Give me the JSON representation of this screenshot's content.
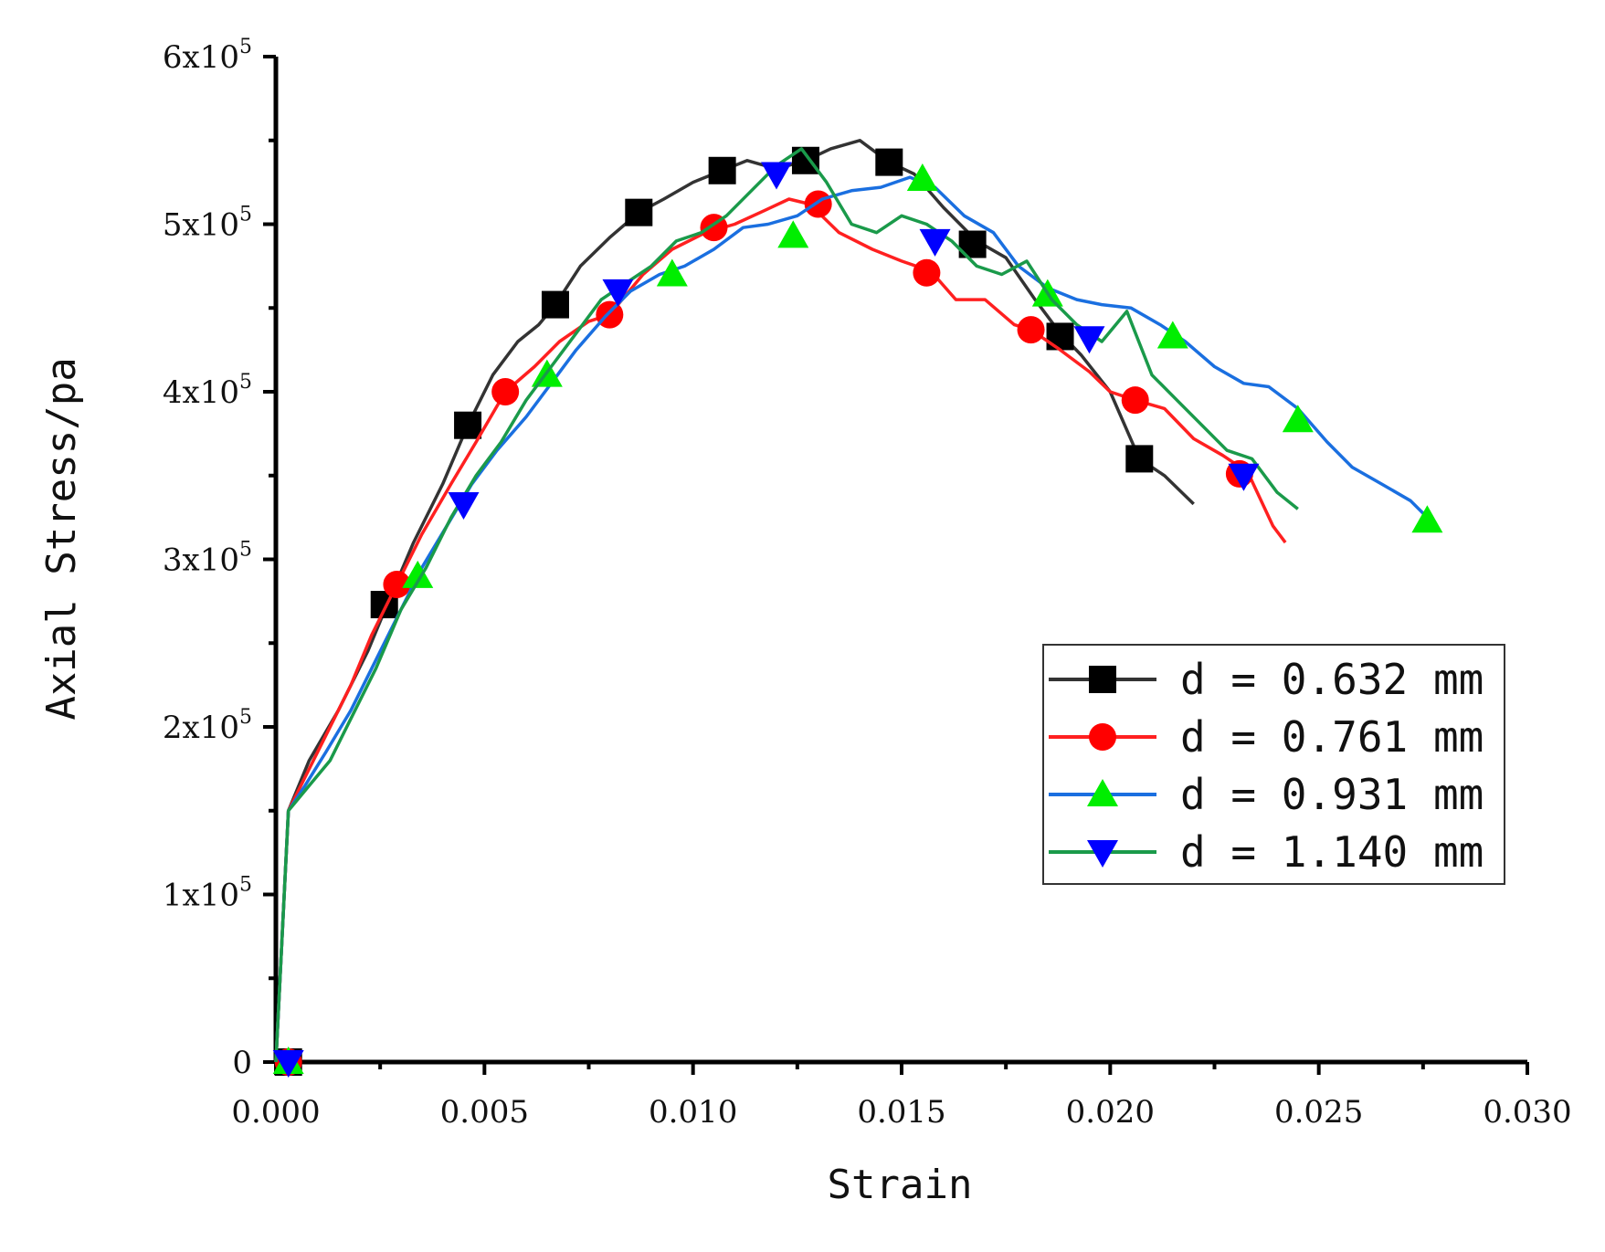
{
  "chart_data": {
    "type": "line",
    "title": "",
    "xlabel": "Strain",
    "ylabel": "Axial Stress/pa",
    "xlim": [
      0,
      0.03
    ],
    "ylim": [
      0,
      600000
    ],
    "x_ticks": [
      {
        "value": 0.0,
        "label": "0.000"
      },
      {
        "value": 0.005,
        "label": "0.005"
      },
      {
        "value": 0.01,
        "label": "0.010"
      },
      {
        "value": 0.015,
        "label": "0.015"
      },
      {
        "value": 0.02,
        "label": "0.020"
      },
      {
        "value": 0.025,
        "label": "0.025"
      },
      {
        "value": 0.03,
        "label": "0.030"
      }
    ],
    "y_ticks": [
      {
        "value": 0,
        "label": "0",
        "mant": "",
        "exp": ""
      },
      {
        "value": 100000,
        "label": "1x10",
        "mant": "1x10",
        "exp": "5"
      },
      {
        "value": 200000,
        "label": "2x10",
        "mant": "2x10",
        "exp": "5"
      },
      {
        "value": 300000,
        "label": "3x10",
        "mant": "3x10",
        "exp": "5"
      },
      {
        "value": 400000,
        "label": "4x10",
        "mant": "4x10",
        "exp": "5"
      },
      {
        "value": 500000,
        "label": "5x10",
        "mant": "5x10",
        "exp": "5"
      },
      {
        "value": 600000,
        "label": "6x10",
        "mant": "6x10",
        "exp": "5"
      }
    ],
    "grid": false,
    "legend_position": "right-middle",
    "series": [
      {
        "name": "d = 0.632 mm",
        "color": "#333333",
        "marker": "square",
        "marker_color": "#000000",
        "x": [
          0,
          0.0003,
          0.0008,
          0.0015,
          0.0022,
          0.0027,
          0.0033,
          0.004,
          0.0046,
          0.0052,
          0.0058,
          0.0063,
          0.0067,
          0.0073,
          0.008,
          0.0087,
          0.0093,
          0.01,
          0.0107,
          0.0113,
          0.012,
          0.0127,
          0.0133,
          0.014,
          0.0147,
          0.0153,
          0.016,
          0.0168,
          0.0175,
          0.0182,
          0.0188,
          0.0193,
          0.02,
          0.0207,
          0.0213,
          0.022
        ],
        "y": [
          0,
          150000,
          180000,
          210000,
          245000,
          275000,
          310000,
          345000,
          380000,
          410000,
          430000,
          440000,
          452000,
          475000,
          492000,
          507000,
          515000,
          525000,
          532000,
          538000,
          533000,
          538000,
          545000,
          550000,
          537000,
          530000,
          510000,
          490000,
          480000,
          455000,
          435000,
          422000,
          400000,
          360000,
          350000,
          333000
        ],
        "marker_x": [
          0.0003,
          0.0026,
          0.0046,
          0.0067,
          0.0087,
          0.0107,
          0.0127,
          0.0147,
          0.0167,
          0.0188,
          0.0207
        ],
        "marker_y": [
          0,
          273000,
          380000,
          452000,
          507000,
          532000,
          538000,
          537000,
          488000,
          433000,
          360000
        ]
      },
      {
        "name": "d = 0.761 mm",
        "color": "#ff2020",
        "marker": "circle",
        "marker_color": "#ff0000",
        "x": [
          0,
          0.0003,
          0.0007,
          0.0012,
          0.0018,
          0.0023,
          0.0029,
          0.0035,
          0.0042,
          0.0048,
          0.0055,
          0.0062,
          0.0068,
          0.0075,
          0.008,
          0.0088,
          0.0095,
          0.0103,
          0.011,
          0.0117,
          0.0123,
          0.0128,
          0.0135,
          0.0143,
          0.015,
          0.0157,
          0.0163,
          0.017,
          0.0177,
          0.0181,
          0.0188,
          0.0195,
          0.02,
          0.0206,
          0.0213,
          0.022,
          0.0227,
          0.0233,
          0.0239,
          0.0242
        ],
        "y": [
          0,
          150000,
          170000,
          195000,
          225000,
          255000,
          285000,
          315000,
          345000,
          370000,
          400000,
          415000,
          430000,
          442000,
          446000,
          470000,
          485000,
          495000,
          500000,
          508000,
          515000,
          512000,
          495000,
          485000,
          478000,
          472000,
          455000,
          455000,
          440000,
          437000,
          425000,
          412000,
          400000,
          395000,
          390000,
          372000,
          362000,
          352000,
          320000,
          310000
        ],
        "marker_x": [
          0.0003,
          0.0029,
          0.0055,
          0.008,
          0.0105,
          0.013,
          0.0156,
          0.0181,
          0.0206,
          0.0231
        ],
        "marker_y": [
          0,
          285000,
          400000,
          446000,
          498000,
          512000,
          471000,
          437000,
          395000,
          351000
        ]
      },
      {
        "name": "d = 0.931 mm",
        "color": "#1a6fe0",
        "marker": "triangle-up",
        "marker_color": "#00ee00",
        "x": [
          0,
          0.0003,
          0.0007,
          0.0012,
          0.0018,
          0.0023,
          0.0029,
          0.0035,
          0.0041,
          0.0047,
          0.0053,
          0.006,
          0.0066,
          0.0072,
          0.0079,
          0.0085,
          0.0092,
          0.0098,
          0.0105,
          0.0112,
          0.0118,
          0.0125,
          0.0131,
          0.0138,
          0.0145,
          0.0152,
          0.0158,
          0.0165,
          0.0172,
          0.0178,
          0.0185,
          0.0192,
          0.0198,
          0.0205,
          0.0212,
          0.0218,
          0.0225,
          0.0232,
          0.0238,
          0.0245,
          0.0252,
          0.0258,
          0.0265,
          0.0272,
          0.0276
        ],
        "y": [
          0,
          150000,
          165000,
          185000,
          210000,
          235000,
          265000,
          295000,
          320000,
          345000,
          365000,
          385000,
          405000,
          425000,
          445000,
          460000,
          470000,
          475000,
          485000,
          498000,
          500000,
          505000,
          515000,
          520000,
          522000,
          528000,
          522000,
          505000,
          495000,
          475000,
          462000,
          455000,
          452000,
          450000,
          440000,
          430000,
          415000,
          405000,
          403000,
          390000,
          370000,
          355000,
          345000,
          335000,
          325000
        ],
        "marker_x": [
          0.0003,
          0.0034,
          0.0065,
          0.0095,
          0.0124,
          0.0155,
          0.0185,
          0.0215,
          0.0245,
          0.0276
        ],
        "marker_y": [
          0,
          290000,
          410000,
          470000,
          493000,
          527000,
          458000,
          433000,
          383000,
          323000
        ]
      },
      {
        "name": "d = 1.140 mm",
        "color": "#1a9a4a",
        "marker": "triangle-down",
        "marker_color": "#0000ff",
        "x": [
          0,
          0.0003,
          0.0008,
          0.0013,
          0.0018,
          0.0024,
          0.003,
          0.0036,
          0.0042,
          0.0048,
          0.0054,
          0.006,
          0.0066,
          0.0072,
          0.0078,
          0.0084,
          0.009,
          0.0096,
          0.0102,
          0.0108,
          0.0114,
          0.012,
          0.0126,
          0.0132,
          0.0138,
          0.0144,
          0.015,
          0.0156,
          0.0162,
          0.0168,
          0.0174,
          0.018,
          0.0186,
          0.0192,
          0.0198,
          0.0204,
          0.021,
          0.0216,
          0.0222,
          0.0228,
          0.0234,
          0.024,
          0.0245
        ],
        "y": [
          0,
          150000,
          165000,
          180000,
          205000,
          235000,
          270000,
          295000,
          325000,
          350000,
          370000,
          395000,
          415000,
          435000,
          455000,
          465000,
          475000,
          490000,
          495000,
          505000,
          520000,
          535000,
          545000,
          525000,
          500000,
          495000,
          505000,
          500000,
          490000,
          475000,
          470000,
          478000,
          455000,
          440000,
          430000,
          448000,
          410000,
          395000,
          380000,
          365000,
          360000,
          340000,
          330000
        ],
        "marker_x": [
          0.0003,
          0.0045,
          0.0082,
          0.012,
          0.0158,
          0.0195,
          0.0232
        ],
        "marker_y": [
          0,
          333000,
          460000,
          530000,
          490000,
          432000,
          350000
        ]
      }
    ]
  }
}
